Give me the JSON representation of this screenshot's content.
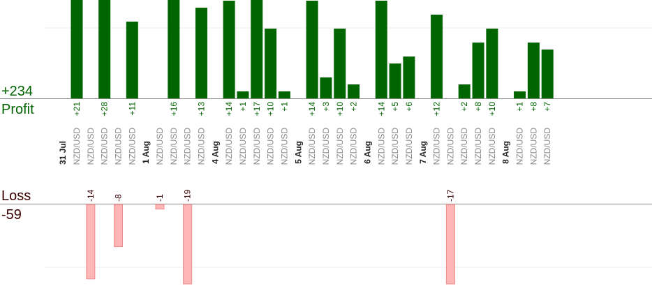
{
  "totals": {
    "profit_value": "+234",
    "profit_label": "Profit",
    "loss_label": "Loss",
    "loss_value": "-59"
  },
  "colors": {
    "profit_bar": "#006400",
    "loss_bar": "#ffb6b6",
    "profit_text": "#006400",
    "loss_text": "#3a0000",
    "grid": "#eeeeee",
    "axis": "#888888"
  },
  "chart_data": {
    "type": "bar",
    "pair": "NZD/USD",
    "date_groups": [
      {
        "date": "31 Jul",
        "trades": [
          21,
          -14,
          28,
          -8,
          11
        ]
      },
      {
        "date": "1 Aug",
        "trades": [
          -1,
          16,
          -19,
          13
        ]
      },
      {
        "date": "4 Aug",
        "trades": [
          14,
          1,
          17,
          10,
          1
        ]
      },
      {
        "date": "5 Aug",
        "trades": [
          14,
          3,
          10,
          2
        ]
      },
      {
        "date": "6 Aug",
        "trades": [
          14,
          5,
          6
        ]
      },
      {
        "date": "7 Aug",
        "trades": [
          12,
          -17,
          2,
          8,
          10
        ]
      },
      {
        "date": "8 Aug",
        "trades": [
          1,
          8,
          7
        ]
      }
    ],
    "series": [
      {
        "name": "Profit",
        "values": [
          21,
          28,
          11,
          16,
          13,
          14,
          1,
          17,
          10,
          1,
          14,
          3,
          10,
          2,
          14,
          5,
          6,
          12,
          2,
          8,
          10,
          1,
          8,
          7
        ]
      },
      {
        "name": "Loss",
        "values": [
          -14,
          -8,
          -1,
          -19,
          -17
        ]
      }
    ],
    "profit_ylim": [
      0,
      14
    ],
    "loss_ylim": [
      -12,
      0
    ]
  }
}
